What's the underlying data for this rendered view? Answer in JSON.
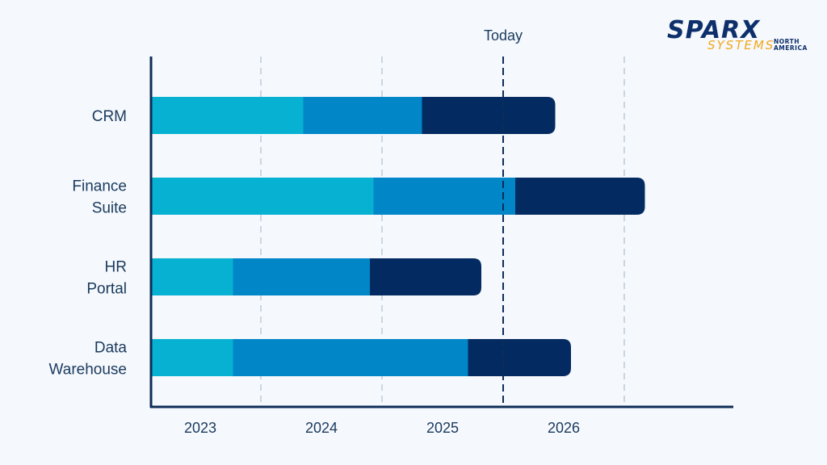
{
  "chart_data": {
    "type": "bar",
    "orientation": "horizontal",
    "stacked": true,
    "categories": [
      "CRM",
      "Finance Suite",
      "HR Portal",
      "Data Warehouse"
    ],
    "category_lines": [
      [
        "CRM"
      ],
      [
        "Finance",
        "Suite"
      ],
      [
        "HR",
        "Portal"
      ],
      [
        "Data",
        "Warehouse"
      ]
    ],
    "x_ticks": [
      "2023",
      "2024",
      "2025",
      "2026"
    ],
    "xlim": [
      2022.6,
      2027.4
    ],
    "series": [
      {
        "color": "#06b1d2",
        "starts": [
          2022.6,
          2022.6,
          2022.6,
          2022.6
        ],
        "ends": [
          2023.85,
          2024.43,
          2023.27,
          2023.27
        ]
      },
      {
        "color": "#0186c8",
        "starts": [
          2023.85,
          2024.43,
          2023.27,
          2023.27
        ],
        "ends": [
          2024.83,
          2025.6,
          2024.4,
          2025.21
        ]
      },
      {
        "color": "#042b61",
        "starts": [
          2024.83,
          2025.6,
          2024.4,
          2025.21
        ],
        "ends": [
          2025.93,
          2026.67,
          2025.32,
          2026.06
        ]
      }
    ],
    "gridlines_x": [
      2023.5,
      2024.5,
      2026.5
    ],
    "today": {
      "label": "Today",
      "x": 2025.5
    },
    "grid": true,
    "legend": "none"
  },
  "logo": {
    "main": "SPARX",
    "sub": "SYSTEMS",
    "region_line1": "NORTH",
    "region_line2": "AMERICA"
  },
  "colors": {
    "axis": "#0e2d57",
    "grid": "#c9d6e4",
    "today": "#0e2d57"
  }
}
